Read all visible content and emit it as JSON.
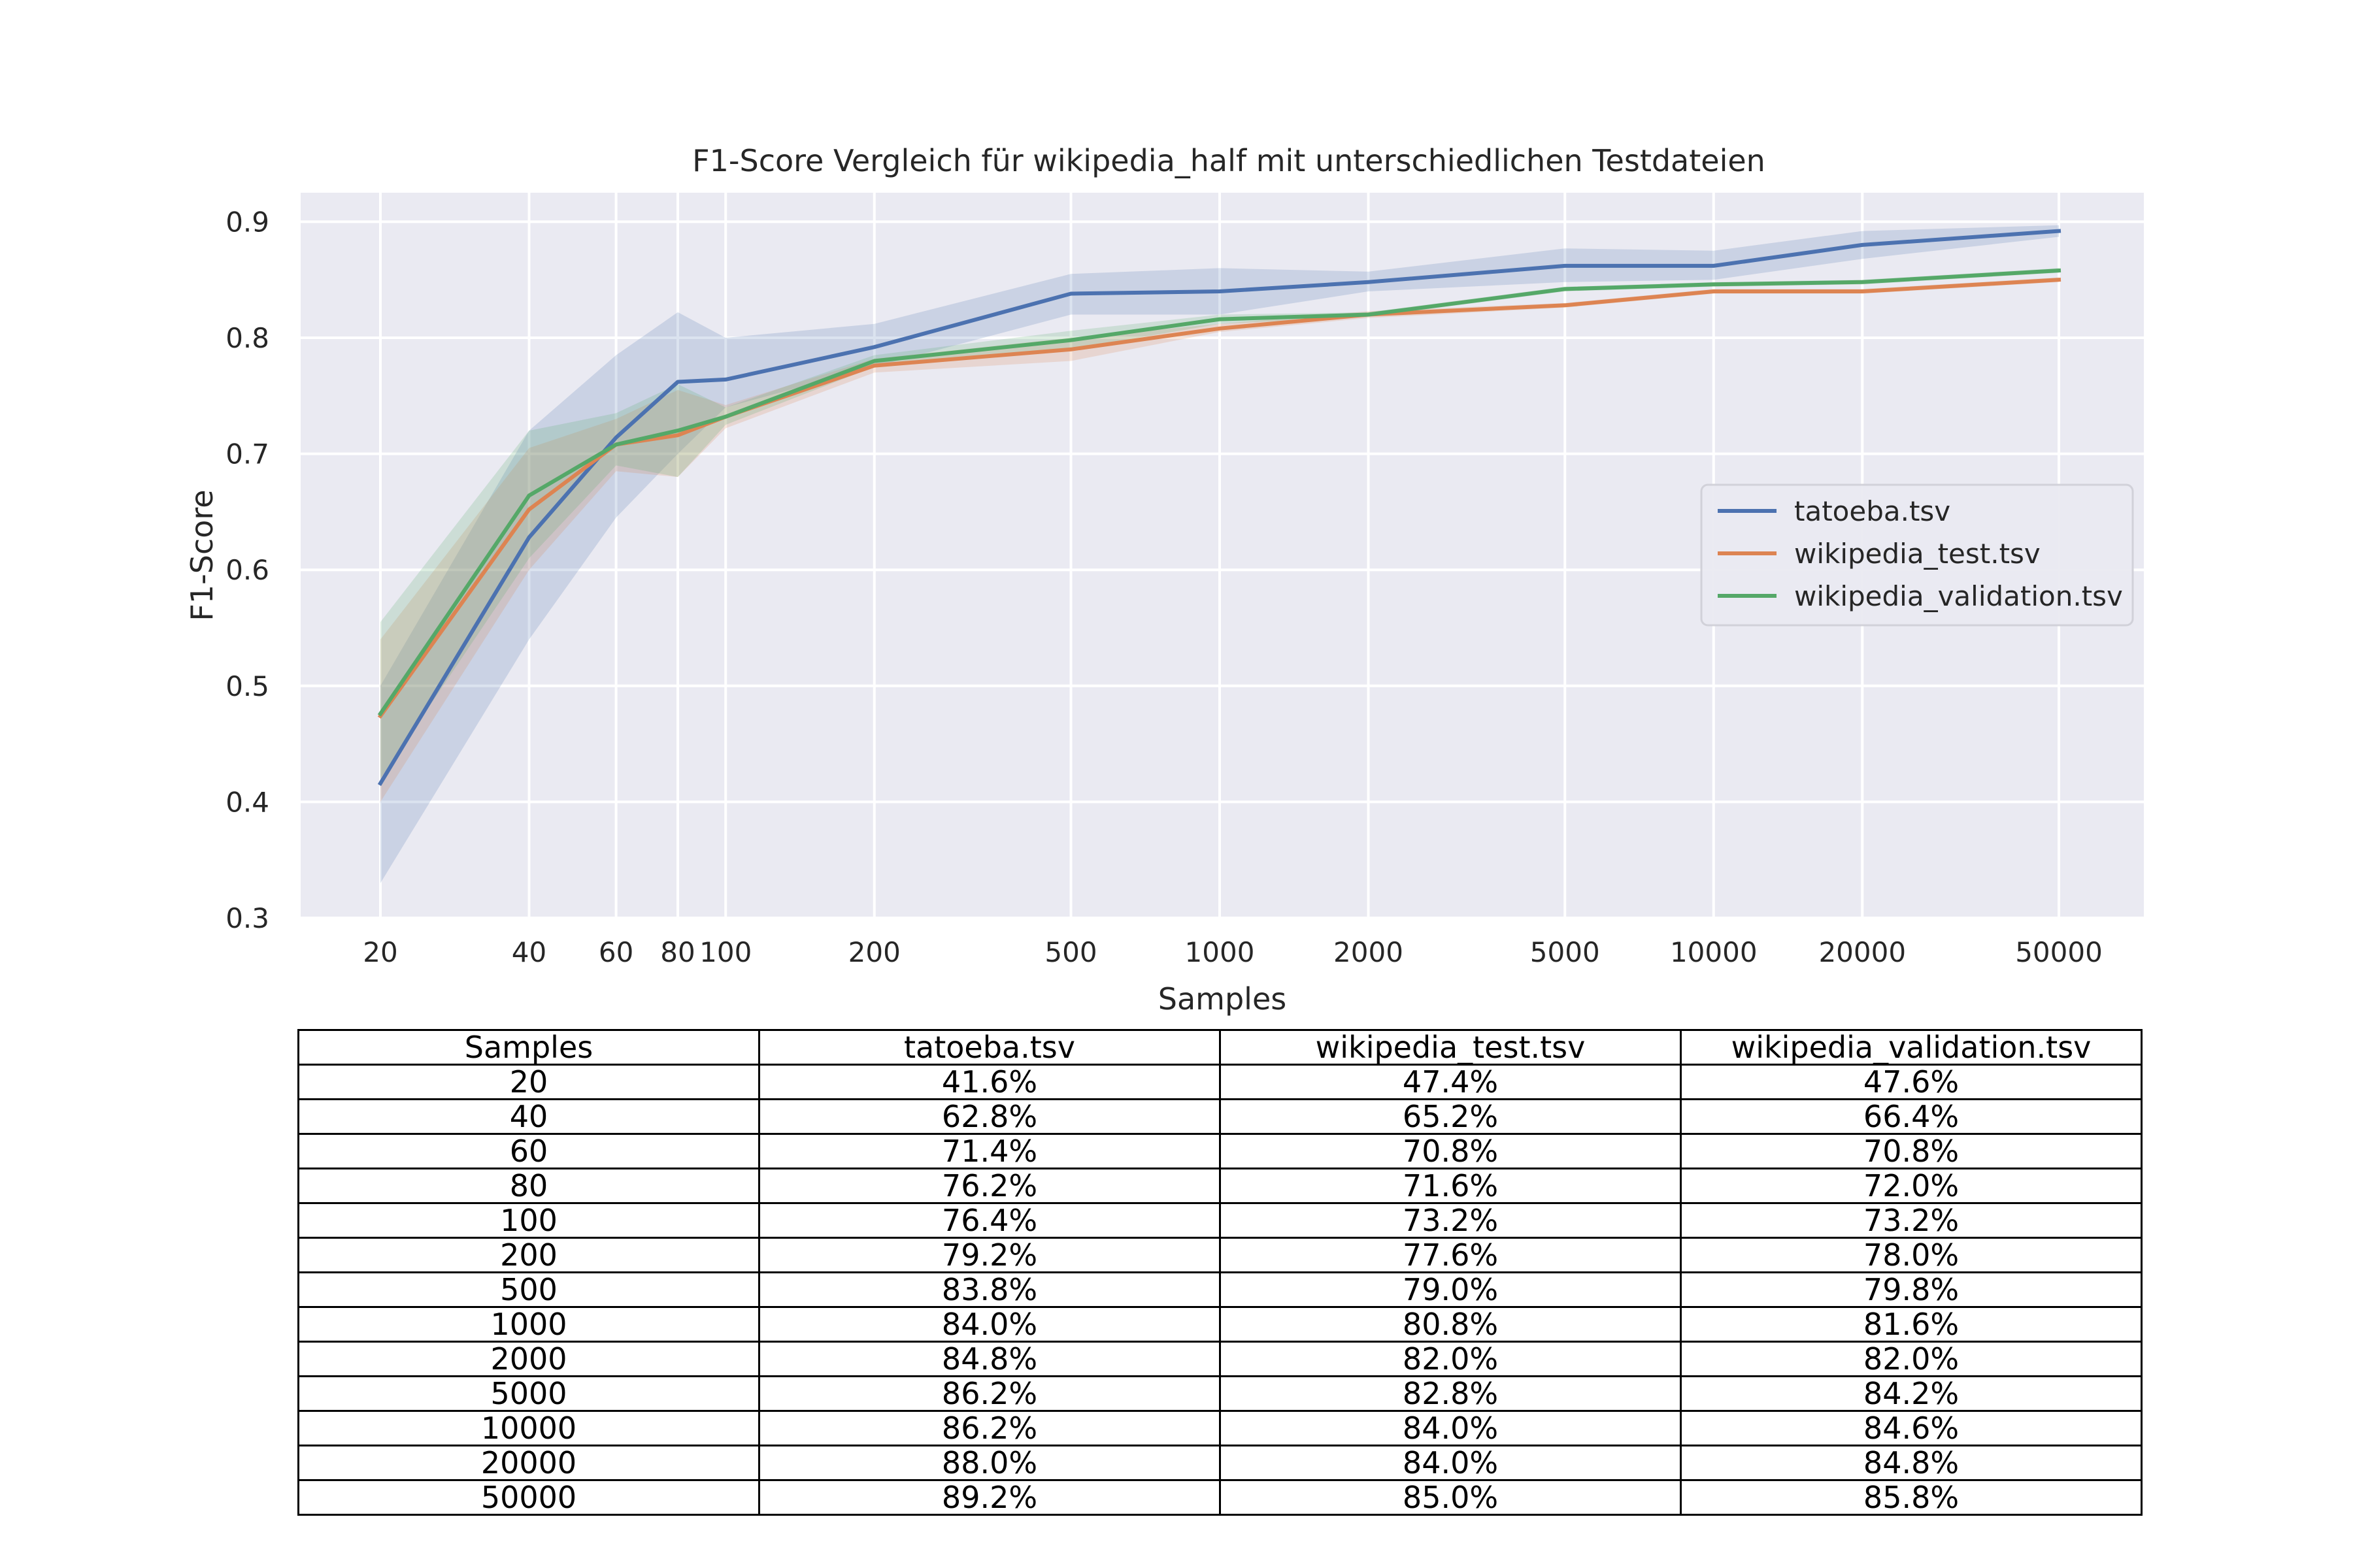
{
  "chart_data": {
    "type": "line",
    "title": "F1-Score Vergleich für wikipedia_half mit unterschiedlichen Testdateien",
    "xlabel": "Samples",
    "ylabel": "F1-Score",
    "x_scale": "log",
    "x": [
      20,
      40,
      60,
      80,
      100,
      200,
      500,
      1000,
      2000,
      5000,
      10000,
      20000,
      50000
    ],
    "x_tick_labels": [
      "20",
      "40",
      "60",
      "80",
      "100",
      "200",
      "500",
      "1000",
      "2000",
      "5000",
      "10000",
      "20000",
      "50000"
    ],
    "y_ticks": [
      0.3,
      0.4,
      0.5,
      0.6,
      0.7,
      0.8,
      0.9
    ],
    "y_tick_labels": [
      "0.3",
      "0.4",
      "0.5",
      "0.6",
      "0.7",
      "0.8",
      "0.9"
    ],
    "ylim": [
      0.3,
      0.925
    ],
    "grid": true,
    "legend_position": "right",
    "series": [
      {
        "name": "tatoeba.tsv",
        "color": "#4c72b0",
        "values": [
          0.416,
          0.628,
          0.714,
          0.762,
          0.764,
          0.792,
          0.838,
          0.84,
          0.848,
          0.862,
          0.862,
          0.88,
          0.892
        ],
        "band_low": [
          0.33,
          0.54,
          0.645,
          0.7,
          0.74,
          0.775,
          0.82,
          0.82,
          0.84,
          0.848,
          0.85,
          0.868,
          0.887
        ],
        "band_high": [
          0.5,
          0.72,
          0.785,
          0.822,
          0.8,
          0.812,
          0.855,
          0.86,
          0.857,
          0.877,
          0.875,
          0.892,
          0.897
        ]
      },
      {
        "name": "wikipedia_test.tsv",
        "color": "#dd8452",
        "values": [
          0.474,
          0.652,
          0.708,
          0.716,
          0.732,
          0.776,
          0.79,
          0.808,
          0.82,
          0.828,
          0.84,
          0.84,
          0.85
        ],
        "band_low": [
          0.4,
          0.6,
          0.685,
          0.68,
          0.722,
          0.77,
          0.78,
          0.805,
          0.817,
          0.826,
          0.838,
          0.838,
          0.848
        ],
        "band_high": [
          0.54,
          0.705,
          0.73,
          0.755,
          0.742,
          0.782,
          0.8,
          0.812,
          0.823,
          0.83,
          0.842,
          0.842,
          0.852
        ]
      },
      {
        "name": "wikipedia_validation.tsv",
        "color": "#55a868",
        "values": [
          0.476,
          0.664,
          0.708,
          0.72,
          0.732,
          0.78,
          0.798,
          0.816,
          0.82,
          0.842,
          0.846,
          0.848,
          0.858
        ],
        "band_low": [
          0.42,
          0.61,
          0.69,
          0.68,
          0.725,
          0.775,
          0.79,
          0.812,
          0.818,
          0.84,
          0.844,
          0.846,
          0.856
        ],
        "band_high": [
          0.555,
          0.72,
          0.735,
          0.76,
          0.74,
          0.785,
          0.806,
          0.82,
          0.822,
          0.844,
          0.848,
          0.85,
          0.86
        ]
      }
    ]
  },
  "table": {
    "headers": [
      "Samples",
      "tatoeba.tsv",
      "wikipedia_test.tsv",
      "wikipedia_validation.tsv"
    ],
    "rows": [
      [
        "20",
        "41.6%",
        "47.4%",
        "47.6%"
      ],
      [
        "40",
        "62.8%",
        "65.2%",
        "66.4%"
      ],
      [
        "60",
        "71.4%",
        "70.8%",
        "70.8%"
      ],
      [
        "80",
        "76.2%",
        "71.6%",
        "72.0%"
      ],
      [
        "100",
        "76.4%",
        "73.2%",
        "73.2%"
      ],
      [
        "200",
        "79.2%",
        "77.6%",
        "78.0%"
      ],
      [
        "500",
        "83.8%",
        "79.0%",
        "79.8%"
      ],
      [
        "1000",
        "84.0%",
        "80.8%",
        "81.6%"
      ],
      [
        "2000",
        "84.8%",
        "82.0%",
        "82.0%"
      ],
      [
        "5000",
        "86.2%",
        "82.8%",
        "84.2%"
      ],
      [
        "10000",
        "86.2%",
        "84.0%",
        "84.6%"
      ],
      [
        "20000",
        "88.0%",
        "84.0%",
        "84.8%"
      ],
      [
        "50000",
        "89.2%",
        "85.0%",
        "85.8%"
      ]
    ]
  }
}
